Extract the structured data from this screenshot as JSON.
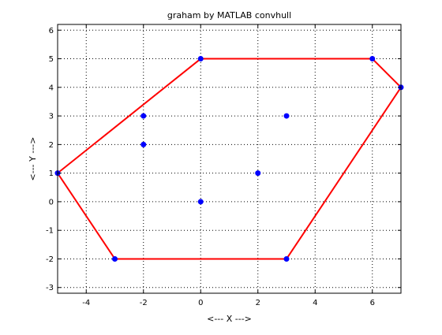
{
  "chart_data": {
    "type": "scatter",
    "title": "graham by MATLAB convhull",
    "xlabel": "<--- X --->",
    "ylabel": "<--- Y --->",
    "xlim": [
      -5,
      7
    ],
    "ylim": [
      -3.2,
      6.2
    ],
    "xticks": [
      -4,
      -2,
      0,
      2,
      4,
      6
    ],
    "yticks": [
      -3,
      -2,
      -1,
      0,
      1,
      2,
      3,
      4,
      5,
      6
    ],
    "grid": true,
    "grid_style": "dotted",
    "point_color": "#0000ff",
    "hull_color": "#ff0000",
    "points": [
      {
        "x": 0,
        "y": 5
      },
      {
        "x": 6,
        "y": 5
      },
      {
        "x": 7,
        "y": 4
      },
      {
        "x": -2,
        "y": 3
      },
      {
        "x": 3,
        "y": 3
      },
      {
        "x": -2,
        "y": 2
      },
      {
        "x": 2,
        "y": 1
      },
      {
        "x": -5,
        "y": 1
      },
      {
        "x": 0,
        "y": 0
      },
      {
        "x": -3,
        "y": -2
      },
      {
        "x": 3,
        "y": -2
      }
    ],
    "hull": [
      {
        "x": 3,
        "y": -2
      },
      {
        "x": 7,
        "y": 4
      },
      {
        "x": 6,
        "y": 5
      },
      {
        "x": 0,
        "y": 5
      },
      {
        "x": -5,
        "y": 1
      },
      {
        "x": -3,
        "y": -2
      },
      {
        "x": 3,
        "y": -2
      }
    ]
  }
}
